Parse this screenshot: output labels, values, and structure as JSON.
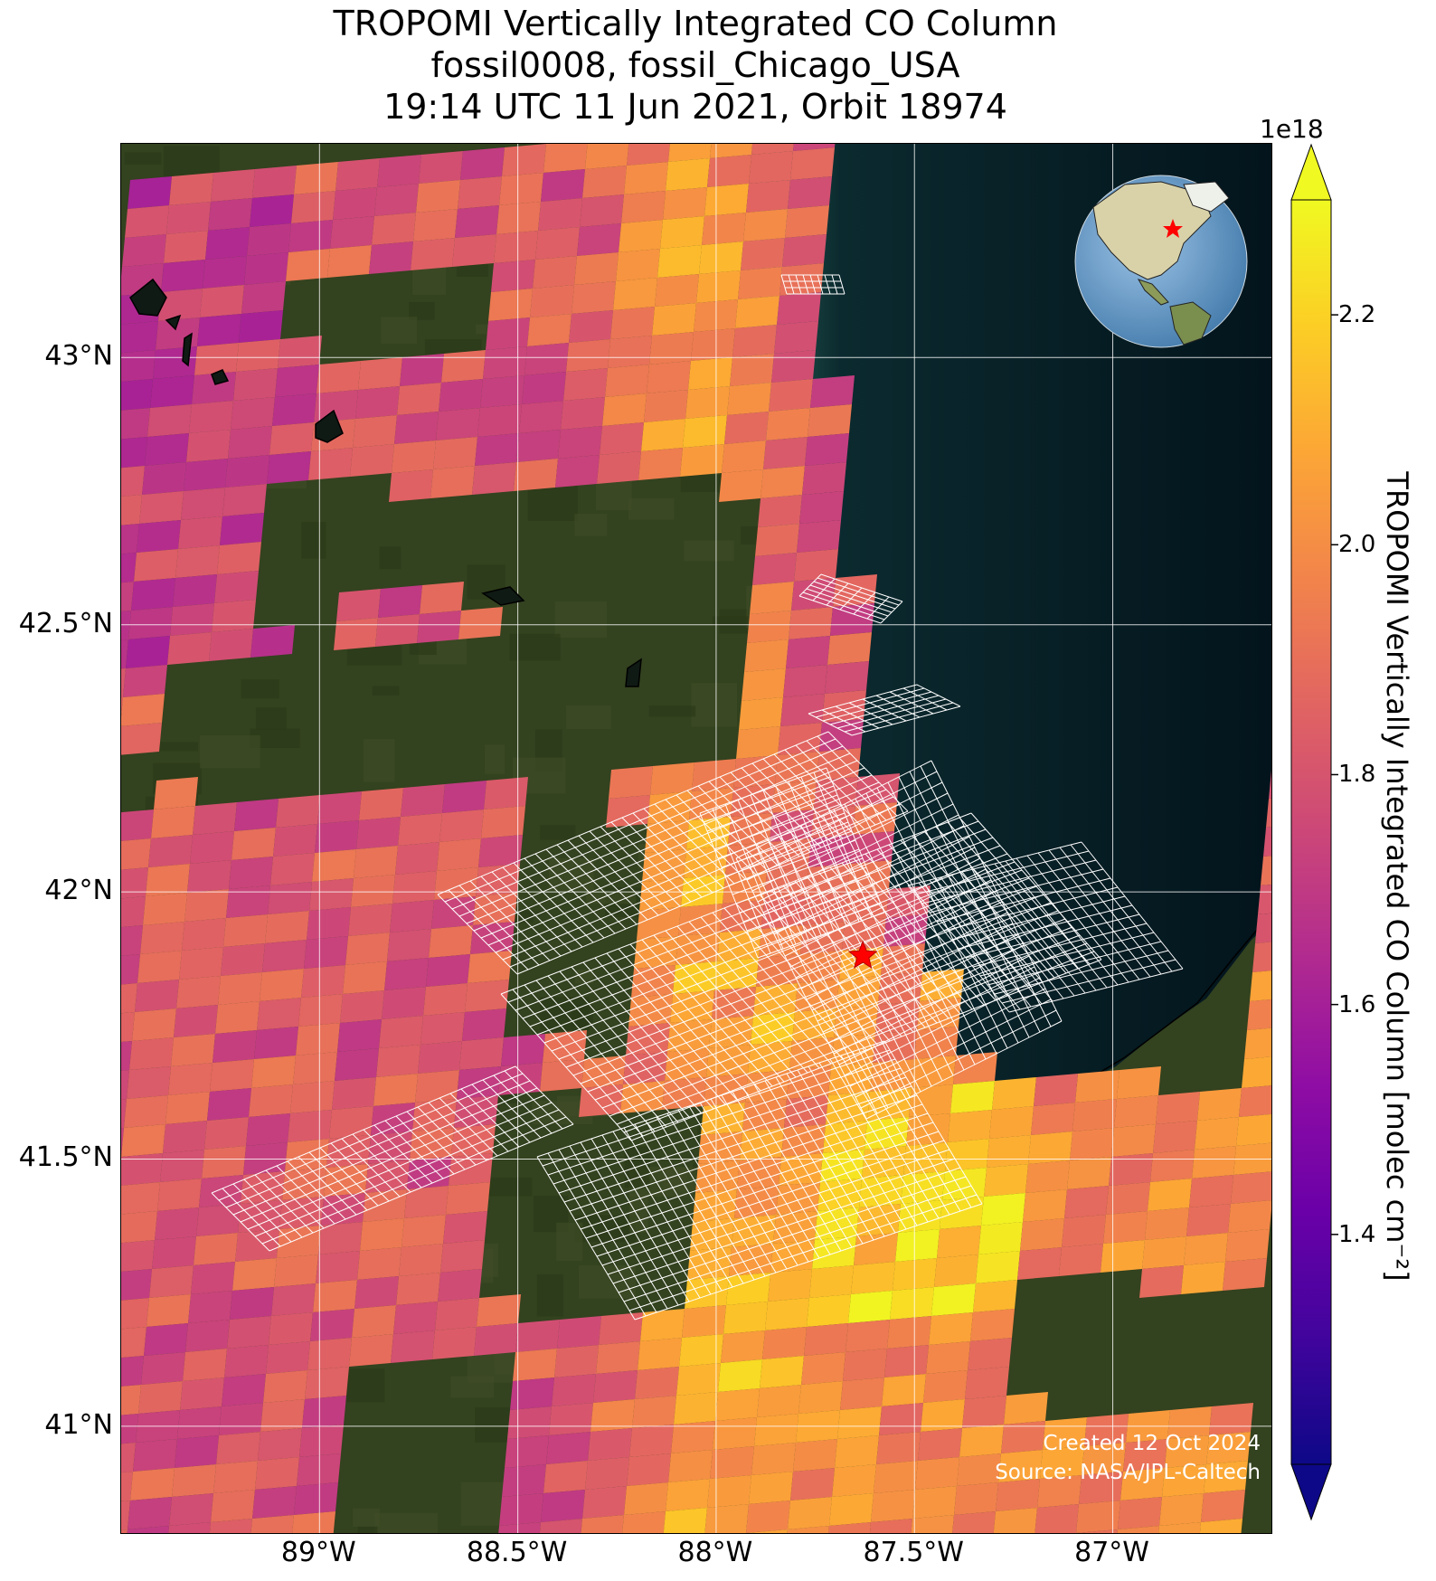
{
  "title": {
    "line1": "TROPOMI Vertically Integrated CO Column",
    "line2": "fossil0008, fossil_Chicago_USA",
    "line3": "19:14 UTC 11 Jun 2021, Orbit 18974"
  },
  "map": {
    "projection": "PlateCarree",
    "extent": {
      "lon": [
        -89.5,
        -86.6
      ],
      "lat": [
        40.8,
        43.4
      ]
    },
    "lat_ticks": [
      {
        "value": 43.0,
        "label": "43°N"
      },
      {
        "value": 42.5,
        "label": "42.5°N"
      },
      {
        "value": 42.0,
        "label": "42°N"
      },
      {
        "value": 41.5,
        "label": "41.5°N"
      },
      {
        "value": 41.0,
        "label": "41°N"
      }
    ],
    "lon_ticks": [
      {
        "value": -89.0,
        "label": "89°W"
      },
      {
        "value": -88.5,
        "label": "88.5°W"
      },
      {
        "value": -88.0,
        "label": "88°W"
      },
      {
        "value": -87.5,
        "label": "87.5°W"
      },
      {
        "value": -87.0,
        "label": "87°W"
      }
    ],
    "grid": true,
    "target": {
      "name": "fossil_Chicago_USA",
      "lon": -87.63,
      "lat": 41.88,
      "marker": "red-star"
    },
    "basemap": "satellite imagery",
    "inset": {
      "type": "orthographic globe",
      "placement": "top-right",
      "marker": "red-star"
    },
    "credits": {
      "created": "Created 12 Oct 2024",
      "source": "Source: NASA/JPL-Caltech"
    }
  },
  "colorbar": {
    "colormap": "plasma",
    "exponent_label": "1e18",
    "label": "TROPOMI Vertically Integrated CO Column [molec cm⁻²]",
    "range": [
      1.2,
      2.3
    ],
    "ticks": [
      {
        "value": 2.2,
        "label": "2.2"
      },
      {
        "value": 2.0,
        "label": "2.0"
      },
      {
        "value": 1.8,
        "label": "1.8"
      },
      {
        "value": 1.6,
        "label": "1.6"
      },
      {
        "value": 1.4,
        "label": "1.4"
      }
    ],
    "extend": "both"
  }
}
